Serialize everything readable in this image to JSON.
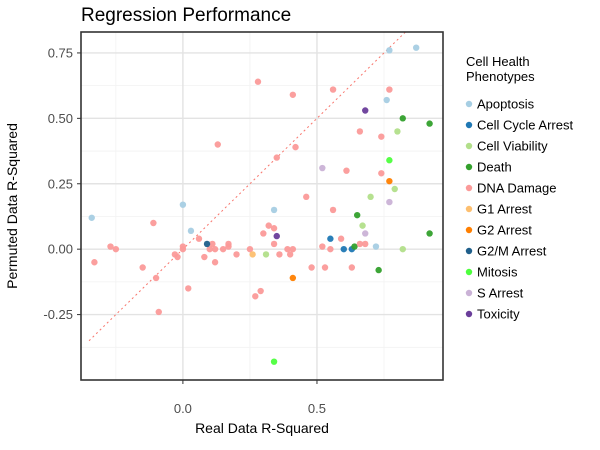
{
  "chart_data": {
    "type": "scatter",
    "title": "Regression Performance",
    "xlabel": "Real Data R-Squared",
    "ylabel": "Permuted Data R-Squared",
    "xlim": [
      -0.38,
      0.97
    ],
    "ylim": [
      -0.5,
      0.83
    ],
    "x_ticks": [
      {
        "value": 0.0,
        "label": "0.0"
      },
      {
        "value": 0.5,
        "label": "0.5"
      }
    ],
    "y_ticks": [
      {
        "value": -0.25,
        "label": "-0.25"
      },
      {
        "value": 0.0,
        "label": "0.00"
      },
      {
        "value": 0.25,
        "label": "0.25"
      },
      {
        "value": 0.5,
        "label": "0.50"
      },
      {
        "value": 0.75,
        "label": "0.75"
      }
    ],
    "grid": true,
    "reference_line": {
      "style": "dashed",
      "color": "#f8766d",
      "slope": 1,
      "intercept": 0
    },
    "legend": {
      "title_lines": [
        "Cell Health",
        "Phenotypes"
      ],
      "position": "right"
    },
    "series": [
      {
        "name": "Apoptosis",
        "color": "#a6cee3",
        "points": [
          [
            -0.34,
            0.12
          ],
          [
            0.0,
            0.17
          ],
          [
            0.03,
            0.07
          ],
          [
            0.34,
            0.15
          ],
          [
            0.77,
            0.76
          ],
          [
            0.87,
            0.77
          ],
          [
            0.76,
            0.57
          ],
          [
            0.72,
            0.01
          ]
        ]
      },
      {
        "name": "Cell Cycle Arrest",
        "color": "#1f78b4",
        "points": [
          [
            0.55,
            0.04
          ],
          [
            0.6,
            0.0
          ],
          [
            0.63,
            0.0
          ]
        ]
      },
      {
        "name": "Cell Viability",
        "color": "#b2df8a",
        "points": [
          [
            0.67,
            0.09
          ],
          [
            0.7,
            0.2
          ],
          [
            0.79,
            0.23
          ],
          [
            0.8,
            0.45
          ],
          [
            0.82,
            0.0
          ],
          [
            0.31,
            -0.02
          ]
        ]
      },
      {
        "name": "Death",
        "color": "#33a02c",
        "points": [
          [
            0.82,
            0.5
          ],
          [
            0.92,
            0.48
          ],
          [
            0.65,
            0.13
          ],
          [
            0.92,
            0.06
          ],
          [
            0.73,
            -0.08
          ],
          [
            0.64,
            0.01
          ]
        ]
      },
      {
        "name": "DNA Damage",
        "color": "#fb9a99",
        "points": [
          [
            -0.33,
            -0.05
          ],
          [
            -0.27,
            0.01
          ],
          [
            -0.25,
            0.0
          ],
          [
            -0.15,
            -0.07
          ],
          [
            -0.11,
            0.1
          ],
          [
            -0.1,
            -0.11
          ],
          [
            -0.09,
            -0.24
          ],
          [
            -0.03,
            -0.02
          ],
          [
            -0.02,
            -0.03
          ],
          [
            0.0,
            0.0
          ],
          [
            0.0,
            0.01
          ],
          [
            0.02,
            -0.15
          ],
          [
            0.06,
            0.04
          ],
          [
            0.08,
            -0.03
          ],
          [
            0.1,
            0.0
          ],
          [
            0.11,
            0.02
          ],
          [
            0.12,
            -0.05
          ],
          [
            0.12,
            0.0
          ],
          [
            0.13,
            0.4
          ],
          [
            0.15,
            0.0
          ],
          [
            0.17,
            0.02
          ],
          [
            0.17,
            0.01
          ],
          [
            0.2,
            -0.02
          ],
          [
            0.25,
            0.0
          ],
          [
            0.27,
            -0.18
          ],
          [
            0.28,
            0.64
          ],
          [
            0.29,
            -0.16
          ],
          [
            0.3,
            0.06
          ],
          [
            0.32,
            0.09
          ],
          [
            0.34,
            0.08
          ],
          [
            0.35,
            0.35
          ],
          [
            0.39,
            0.0
          ],
          [
            0.41,
            0.59
          ],
          [
            0.41,
            0.0
          ],
          [
            0.42,
            0.39
          ],
          [
            0.46,
            0.2
          ],
          [
            0.48,
            -0.07
          ],
          [
            0.52,
            0.01
          ],
          [
            0.53,
            -0.07
          ],
          [
            0.55,
            0.0
          ],
          [
            0.56,
            0.61
          ],
          [
            0.56,
            0.15
          ],
          [
            0.59,
            0.04
          ],
          [
            0.61,
            0.3
          ],
          [
            0.63,
            -0.07
          ],
          [
            0.66,
            0.45
          ],
          [
            0.66,
            0.02
          ],
          [
            0.68,
            0.02
          ],
          [
            0.74,
            0.43
          ],
          [
            0.74,
            0.29
          ],
          [
            0.77,
            0.61
          ],
          [
            0.34,
            0.02
          ],
          [
            0.36,
            -0.02
          ],
          [
            0.4,
            -0.02
          ]
        ]
      },
      {
        "name": "G1 Arrest",
        "color": "#fdbf6f",
        "points": [
          [
            0.26,
            -0.02
          ]
        ]
      },
      {
        "name": "G2 Arrest",
        "color": "#ff7f00",
        "points": [
          [
            0.41,
            -0.11
          ],
          [
            0.77,
            0.26
          ]
        ]
      },
      {
        "name": "G2/M Arrest",
        "color": "#1f5f8b",
        "points": [
          [
            0.09,
            0.02
          ]
        ]
      },
      {
        "name": "Mitosis",
        "color": "#4dff3d",
        "points": [
          [
            0.77,
            0.34
          ],
          [
            0.34,
            -0.43
          ]
        ]
      },
      {
        "name": "S Arrest",
        "color": "#cab2d6",
        "points": [
          [
            0.52,
            0.31
          ],
          [
            0.77,
            0.18
          ],
          [
            0.68,
            0.06
          ]
        ]
      },
      {
        "name": "Toxicity",
        "color": "#6a3d9a",
        "points": [
          [
            0.68,
            0.53
          ],
          [
            0.35,
            0.05
          ]
        ]
      }
    ]
  }
}
